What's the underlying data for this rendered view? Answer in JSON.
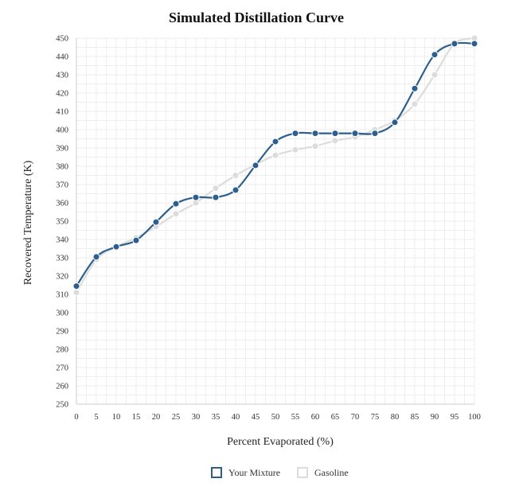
{
  "chart_data": {
    "type": "line",
    "title": "Simulated Distillation Curve",
    "xlabel": "Percent Evaporated (%)",
    "ylabel": "Recovered Temperature (K)",
    "xlim": [
      0,
      100
    ],
    "ylim": [
      250,
      450
    ],
    "x_ticks": [
      0,
      5,
      10,
      15,
      20,
      25,
      30,
      35,
      40,
      45,
      50,
      55,
      60,
      65,
      70,
      75,
      80,
      85,
      90,
      95,
      100
    ],
    "y_ticks": [
      250,
      260,
      270,
      280,
      290,
      300,
      310,
      320,
      330,
      340,
      350,
      360,
      370,
      380,
      390,
      400,
      410,
      420,
      430,
      440,
      450
    ],
    "grid": true,
    "legend_position": "bottom",
    "x": [
      0,
      5,
      10,
      15,
      20,
      25,
      30,
      35,
      40,
      45,
      50,
      55,
      60,
      65,
      70,
      75,
      80,
      85,
      90,
      95,
      100
    ],
    "series": [
      {
        "name": "Gasoline",
        "color": "#dcdcdc",
        "values": [
          311,
          329,
          336,
          341,
          347,
          354,
          360,
          368,
          375,
          381,
          386,
          389,
          391,
          394,
          396,
          400,
          405,
          414,
          430,
          447,
          450
        ]
      },
      {
        "name": "Your Mixture",
        "color": "#2c5f8e",
        "values": [
          314.5,
          330.5,
          336,
          339.5,
          349.5,
          359.5,
          363,
          363,
          367,
          380.5,
          393.5,
          398,
          398,
          398,
          398,
          398,
          404,
          422.5,
          441,
          447,
          447
        ]
      }
    ],
    "legend": [
      "Your Mixture",
      "Gasoline"
    ]
  }
}
